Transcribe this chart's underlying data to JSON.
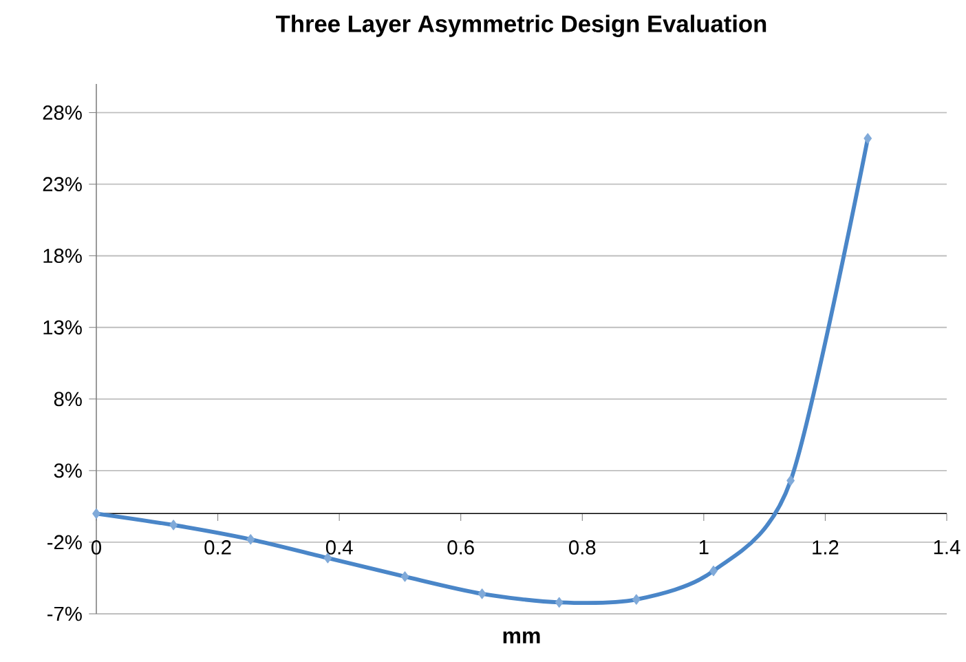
{
  "chart_data": {
    "type": "line",
    "title": "Three Layer Asymmetric Design Evaluation",
    "xlabel": "mm",
    "x": [
      0,
      0.127,
      0.254,
      0.381,
      0.508,
      0.635,
      0.762,
      0.889,
      1.016,
      1.143,
      1.27
    ],
    "series": [
      {
        "color": "#4a86c8",
        "values": [
          0,
          -0.8,
          -1.8,
          -3.1,
          -4.4,
          -5.6,
          -6.2,
          -6.0,
          -4.0,
          2.3,
          26.2
        ]
      }
    ],
    "xlim": [
      0,
      1.4
    ],
    "xticks": [
      0,
      0.2,
      0.4,
      0.6,
      0.8,
      1,
      1.2,
      1.4
    ],
    "ylim": [
      -7,
      30
    ],
    "yticks": [
      {
        "value": -7,
        "label": "-7%"
      },
      {
        "value": -2,
        "label": "-2%"
      },
      {
        "value": 3,
        "label": "3%"
      },
      {
        "value": 8,
        "label": "8%"
      },
      {
        "value": 13,
        "label": "13%"
      },
      {
        "value": 18,
        "label": "18%"
      },
      {
        "value": 23,
        "label": "23%"
      },
      {
        "value": 28,
        "label": "28%"
      }
    ],
    "grid": "y",
    "marker": "diamond",
    "line_style": "solid"
  }
}
